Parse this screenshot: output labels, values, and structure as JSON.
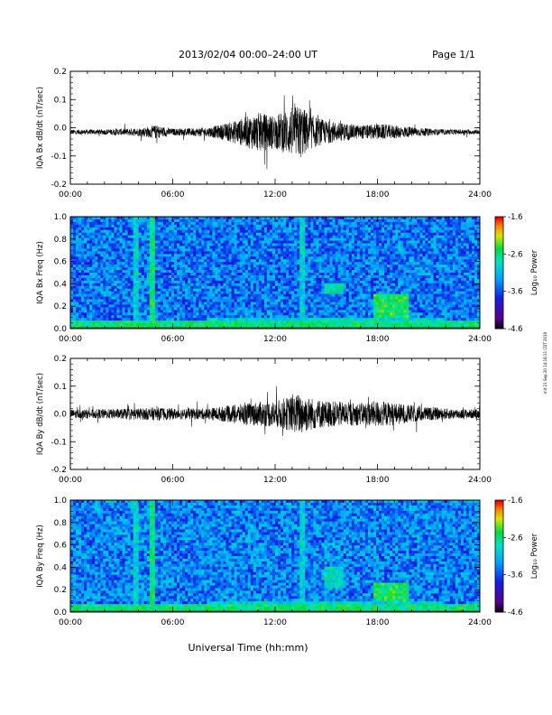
{
  "header": {
    "title": "2013/02/04  00:00–24:00 UT",
    "page": "Page 1/1"
  },
  "footer": {
    "xlabel": "Universal Time (hh:mm)"
  },
  "side_note": "mit 21 Sep 20 14:18:11 CDT 2019",
  "colorbar": {
    "label": "Log₁₀ Power",
    "ticks": [
      "-1.6",
      "-2.6",
      "-3.6",
      "-4.6"
    ]
  },
  "chart_data": [
    {
      "type": "line",
      "title": "",
      "ylabel": "IQA Bx dB/dt (nT/sec)",
      "xlabel": "",
      "x_ticks": [
        "00:00",
        "06:00",
        "12:00",
        "18:00",
        "24:00"
      ],
      "xlim": [
        0,
        24
      ],
      "ylim": [
        -0.2,
        0.2
      ],
      "y_ticks": [
        "-0.2",
        "-0.1",
        "0.0",
        "0.1",
        "0.2"
      ],
      "baseline": -0.015,
      "series": [
        {
          "envelope_hours": [
            0,
            2,
            4,
            5,
            6,
            8,
            9,
            10,
            11,
            12,
            13,
            13.5,
            14,
            15,
            16,
            17,
            18,
            19,
            20,
            21,
            22,
            24
          ],
          "envelope_amplitude": [
            0.01,
            0.012,
            0.018,
            0.03,
            0.015,
            0.02,
            0.035,
            0.06,
            0.085,
            0.075,
            0.11,
            0.12,
            0.08,
            0.05,
            0.04,
            0.03,
            0.035,
            0.03,
            0.022,
            0.015,
            0.012,
            0.01
          ]
        }
      ]
    },
    {
      "type": "heatmap",
      "title": "",
      "ylabel": "IQA Bx Freq (Hz)",
      "xlabel": "",
      "x_ticks": [
        "00:00",
        "06:00",
        "12:00",
        "18:00",
        "24:00"
      ],
      "xlim": [
        0,
        24
      ],
      "ylim": [
        0,
        1.0
      ],
      "y_ticks": [
        "0.0",
        "0.2",
        "0.4",
        "0.6",
        "0.8",
        "1.0"
      ],
      "colorbar_range": [
        -4.6,
        -1.6
      ],
      "background_log_power": -3.4,
      "features": [
        {
          "t_start": 3.8,
          "t_end": 3.95,
          "f_start": 0.0,
          "f_end": 1.0,
          "log_power": -2.9
        },
        {
          "t_start": 4.65,
          "t_end": 4.85,
          "f_start": 0.0,
          "f_end": 1.0,
          "log_power": -2.6
        },
        {
          "t_start": 13.45,
          "t_end": 13.6,
          "f_start": 0.0,
          "f_end": 1.0,
          "log_power": -2.9
        },
        {
          "t_start": 15.0,
          "t_end": 16.0,
          "f_start": 0.3,
          "f_end": 0.4,
          "log_power": -2.8
        },
        {
          "t_start": 17.8,
          "t_end": 19.8,
          "f_start": 0.1,
          "f_end": 0.3,
          "log_power": -2.5
        },
        {
          "t_start": 0.0,
          "t_end": 24.0,
          "f_start": 0.0,
          "f_end": 0.06,
          "log_power": -2.6
        }
      ]
    },
    {
      "type": "line",
      "title": "",
      "ylabel": "IQA By dB/dt (nT/sec)",
      "xlabel": "",
      "x_ticks": [
        "00:00",
        "06:00",
        "12:00",
        "18:00",
        "24:00"
      ],
      "xlim": [
        0,
        24
      ],
      "ylim": [
        -0.2,
        0.2
      ],
      "y_ticks": [
        "-0.2",
        "-0.1",
        "0.0",
        "0.1",
        "0.2"
      ],
      "baseline": 0.0,
      "series": [
        {
          "envelope_hours": [
            0,
            2,
            4,
            5,
            6,
            8,
            9,
            10,
            11,
            12,
            13,
            13.5,
            14,
            15,
            16,
            17,
            18,
            19,
            20,
            21,
            22,
            24
          ],
          "envelope_amplitude": [
            0.02,
            0.022,
            0.025,
            0.03,
            0.025,
            0.025,
            0.035,
            0.045,
            0.055,
            0.06,
            0.08,
            0.095,
            0.075,
            0.06,
            0.055,
            0.05,
            0.06,
            0.05,
            0.04,
            0.03,
            0.025,
            0.02
          ]
        }
      ]
    },
    {
      "type": "heatmap",
      "title": "",
      "ylabel": "IQA By Freq (Hz)",
      "xlabel": "",
      "x_ticks": [
        "00:00",
        "06:00",
        "12:00",
        "18:00",
        "24:00"
      ],
      "xlim": [
        0,
        24
      ],
      "ylim": [
        0,
        1.0
      ],
      "y_ticks": [
        "0.0",
        "0.2",
        "0.4",
        "0.6",
        "0.8",
        "1.0"
      ],
      "colorbar_range": [
        -4.6,
        -1.6
      ],
      "background_log_power": -3.35,
      "features": [
        {
          "t_start": 3.8,
          "t_end": 3.95,
          "f_start": 0.0,
          "f_end": 1.0,
          "log_power": -2.9
        },
        {
          "t_start": 4.65,
          "t_end": 4.85,
          "f_start": 0.0,
          "f_end": 1.0,
          "log_power": -2.6
        },
        {
          "t_start": 13.45,
          "t_end": 13.6,
          "f_start": 0.0,
          "f_end": 1.0,
          "log_power": -2.9
        },
        {
          "t_start": 15.0,
          "t_end": 16.0,
          "f_start": 0.22,
          "f_end": 0.4,
          "log_power": -2.8
        },
        {
          "t_start": 17.8,
          "t_end": 19.8,
          "f_start": 0.1,
          "f_end": 0.25,
          "log_power": -2.5
        },
        {
          "t_start": 0.0,
          "t_end": 24.0,
          "f_start": 0.0,
          "f_end": 0.06,
          "log_power": -2.6
        }
      ]
    }
  ]
}
